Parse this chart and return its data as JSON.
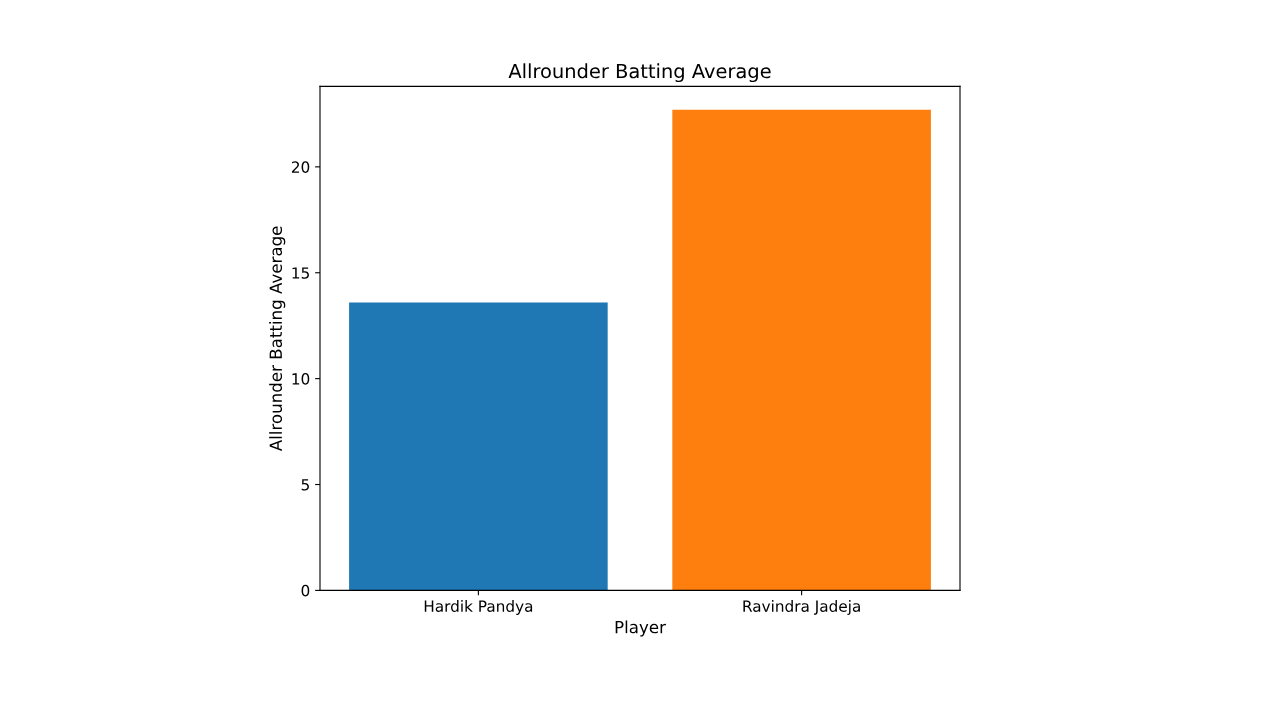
{
  "chart_data": {
    "type": "bar",
    "title": "Allrounder Batting Average",
    "xlabel": "Player",
    "ylabel": "Allrounder Batting Average",
    "categories": [
      "Hardik Pandya",
      "Ravindra Jadeja"
    ],
    "values": [
      13.6,
      22.7
    ],
    "colors": [
      "#1f77b4",
      "#ff7f0e"
    ],
    "ylim": [
      0,
      23.8
    ],
    "yticks": [
      0,
      5,
      10,
      15,
      20
    ],
    "grid": false
  }
}
